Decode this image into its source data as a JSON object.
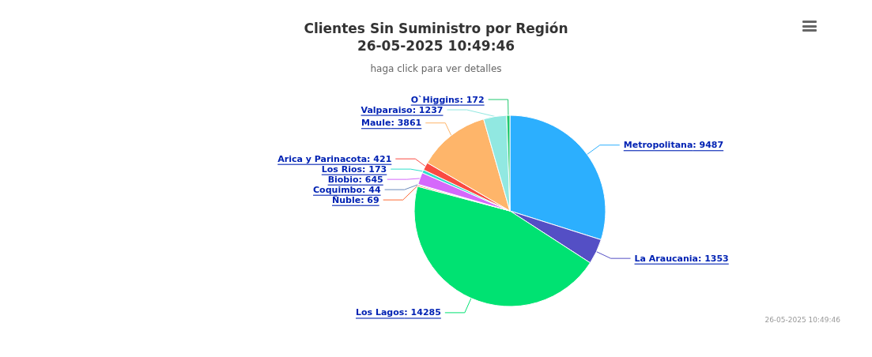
{
  "chart_data": {
    "type": "pie",
    "title": "Clientes Sin Suministro por Región\n26-05-2025 10:49:46",
    "subtitle": "haga click para ver detalles",
    "categories": [
      "Metropolitana",
      "La Araucania",
      "Los Lagos",
      "Ñuble",
      "Coquimbo",
      "Biobio",
      "Los Rios",
      "Arica y Parinacota",
      "Maule",
      "Valparaiso",
      "O`Higgins"
    ],
    "values": [
      9487,
      1353,
      14285,
      69,
      44,
      645,
      173,
      421,
      3861,
      1237,
      172
    ],
    "value_labels": [
      ": 9487",
      ": 1353",
      ": 14285",
      ": 69",
      ": 44",
      ": 645",
      ": 173",
      ": 421",
      ": 3861",
      ": 1237",
      ": 172"
    ],
    "colors": [
      "#2caffe",
      "#544fc5",
      "#00e272",
      "#fe6a35",
      "#6b8abc",
      "#d568fb",
      "#2ee0ca",
      "#fa4b42",
      "#feb56a",
      "#91e8e1",
      "#1fc96e"
    ],
    "legend": false,
    "annotations": [
      "26-05-2025 10:49:46"
    ]
  }
}
